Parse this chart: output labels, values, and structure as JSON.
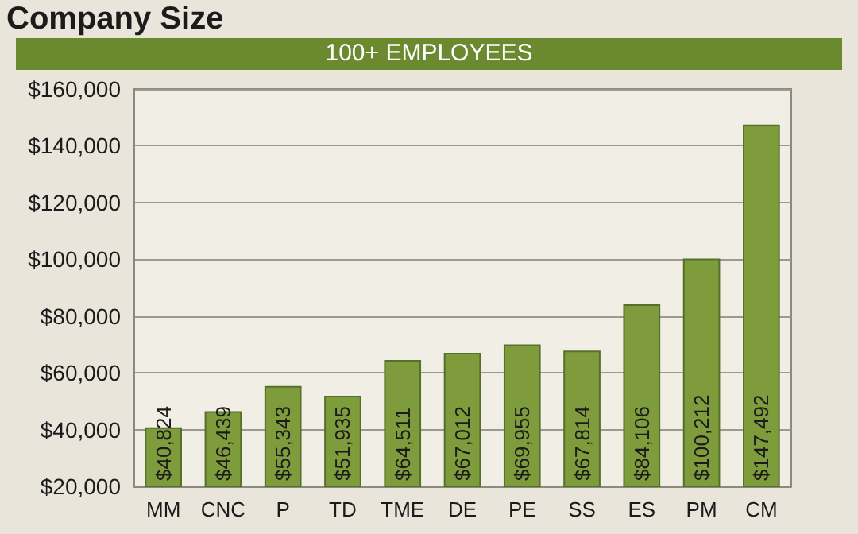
{
  "chart_data": {
    "type": "bar",
    "title": "Company Size",
    "subtitle": "100+ EMPLOYEES",
    "categories": [
      "MM",
      "CNC",
      "P",
      "TD",
      "TME",
      "DE",
      "PE",
      "SS",
      "ES",
      "PM",
      "CM"
    ],
    "values": [
      40824,
      46439,
      55343,
      51935,
      64511,
      67012,
      69955,
      67814,
      84106,
      100212,
      147492
    ],
    "value_labels": [
      "$40,824",
      "$46,439",
      "$55,343",
      "$51,935",
      "$64,511",
      "$67,012",
      "$69,955",
      "$67,814",
      "$84,106",
      "$100,212",
      "$147,492"
    ],
    "color": "#7f9c3c",
    "ylim": [
      20000,
      160000
    ],
    "yticks": [
      {
        "value": 20000,
        "label": "$20,000"
      },
      {
        "value": 40000,
        "label": "$40,000"
      },
      {
        "value": 60000,
        "label": "$60,000"
      },
      {
        "value": 80000,
        "label": "$80,000"
      },
      {
        "value": 100000,
        "label": "$100,000"
      },
      {
        "value": 120000,
        "label": "$120,000"
      },
      {
        "value": 140000,
        "label": "$140,000"
      },
      {
        "value": 160000,
        "label": "$160,000"
      }
    ],
    "grid": "y"
  }
}
